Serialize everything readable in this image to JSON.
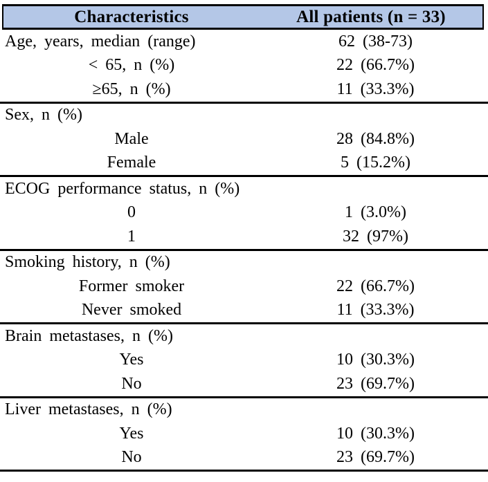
{
  "colors": {
    "header_bg": "#b4c7e7",
    "border": "#000000",
    "text": "#000000",
    "page_bg": "#ffffff"
  },
  "table": {
    "header": {
      "col1": "Characteristics",
      "col2": "All patients (n = 33)"
    },
    "sections": [
      {
        "name": "age",
        "rows": [
          {
            "type": "category",
            "label": "Age, years, median (range)",
            "value": "62 (38-73)"
          },
          {
            "type": "sub",
            "label": "< 65, n (%)",
            "value": "22 (66.7%)"
          },
          {
            "type": "sub",
            "label": "≥65, n (%)",
            "value": "11 (33.3%)"
          }
        ]
      },
      {
        "name": "sex",
        "rows": [
          {
            "type": "category",
            "label": "Sex, n (%)",
            "value": ""
          },
          {
            "type": "sub",
            "label": "Male",
            "value": "28 (84.8%)"
          },
          {
            "type": "sub",
            "label": "Female",
            "value": "5 (15.2%)"
          }
        ]
      },
      {
        "name": "ecog",
        "rows": [
          {
            "type": "category",
            "label": "ECOG performance status, n (%)",
            "value": ""
          },
          {
            "type": "sub",
            "label": "0",
            "value": "1 (3.0%)"
          },
          {
            "type": "sub",
            "label": "1",
            "value": "32 (97%)"
          }
        ]
      },
      {
        "name": "smoking",
        "rows": [
          {
            "type": "category",
            "label": "Smoking history, n (%)",
            "value": ""
          },
          {
            "type": "sub",
            "label": "Former smoker",
            "value": "22 (66.7%)"
          },
          {
            "type": "sub",
            "label": "Never smoked",
            "value": "11 (33.3%)"
          }
        ]
      },
      {
        "name": "brain-metastases",
        "rows": [
          {
            "type": "category",
            "label": "Brain metastases, n (%)",
            "value": ""
          },
          {
            "type": "sub",
            "label": "Yes",
            "value": "10 (30.3%)"
          },
          {
            "type": "sub",
            "label": "No",
            "value": "23 (69.7%)"
          }
        ]
      },
      {
        "name": "liver-metastases",
        "rows": [
          {
            "type": "category",
            "label": "Liver metastases, n (%)",
            "value": ""
          },
          {
            "type": "sub",
            "label": "Yes",
            "value": "10 (30.3%)"
          },
          {
            "type": "sub",
            "label": "No",
            "value": "23 (69.7%)"
          }
        ]
      }
    ]
  }
}
